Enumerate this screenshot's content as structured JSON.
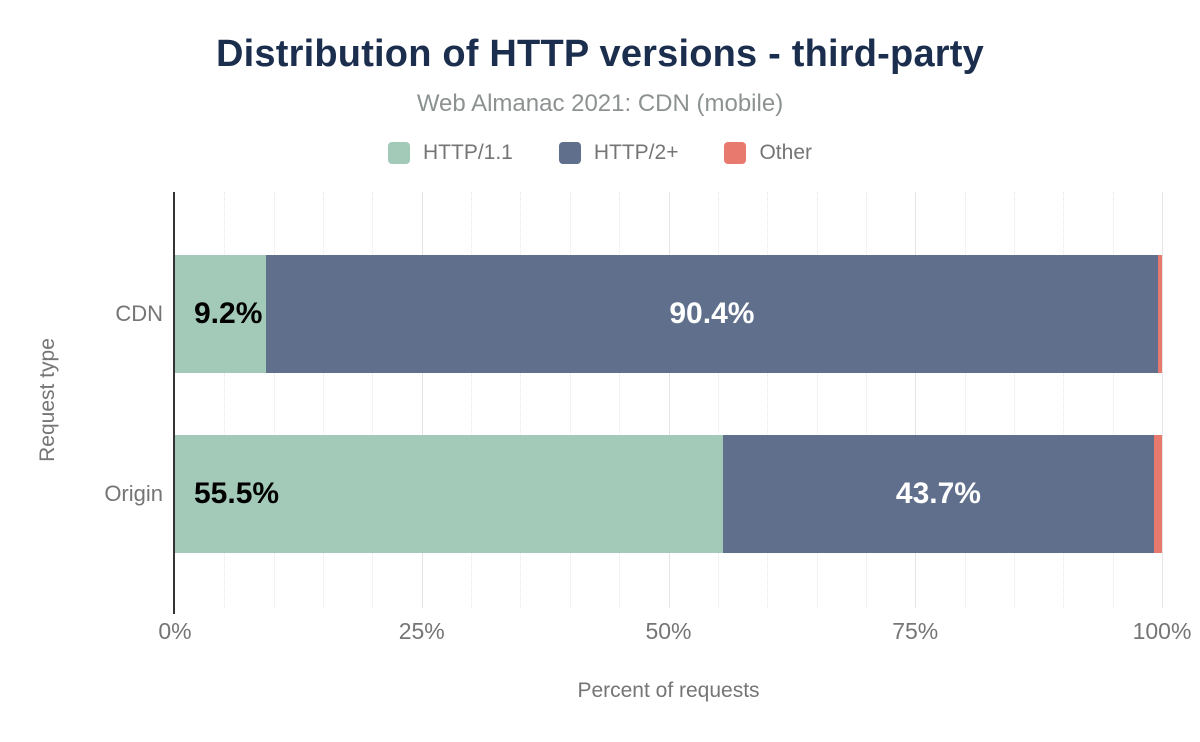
{
  "title": "Distribution of HTTP versions - third-party",
  "subtitle": "Web Almanac 2021: CDN (mobile)",
  "colors": {
    "title": "#1b2e4e",
    "text_gray": "#757575",
    "subtitle_gray": "#8c9292",
    "axis_line": "#333333",
    "grid_major": "#e4e4e4",
    "grid_minor": "#e7e7e7",
    "http11_green": "#a3c9b8",
    "http2_blue": "#5f6f8c",
    "other_salmon": "#e8796f"
  },
  "legend": [
    {
      "label": "HTTP/1.1",
      "color": "#a3c9b8"
    },
    {
      "label": "HTTP/2+",
      "color": "#5f6f8c"
    },
    {
      "label": "Other",
      "color": "#e8796f"
    }
  ],
  "chart_data": {
    "type": "bar",
    "orientation": "horizontal",
    "stacked": true,
    "title": "Distribution of HTTP versions - third-party",
    "subtitle": "Web Almanac 2021: CDN (mobile)",
    "categories": [
      "CDN",
      "Origin"
    ],
    "series": [
      {
        "name": "HTTP/1.1",
        "color": "#a3c9b8",
        "values": [
          9.2,
          55.5
        ]
      },
      {
        "name": "HTTP/2+",
        "color": "#5f6f8c",
        "values": [
          90.4,
          43.7
        ]
      },
      {
        "name": "Other",
        "color": "#e8796f",
        "values": [
          0.4,
          0.8
        ]
      }
    ],
    "bar_labels": [
      [
        "9.2%",
        "90.4%",
        ""
      ],
      [
        "55.5%",
        "43.7%",
        ""
      ]
    ],
    "xlabel": "Percent of requests",
    "ylabel": "Request type",
    "x_ticks": [
      "0%",
      "25%",
      "50%",
      "75%",
      "100%"
    ],
    "xlim": [
      0,
      100
    ],
    "grid": "vertical: solid major every 25%, dotted minor every 5%",
    "legend_position": "top"
  }
}
